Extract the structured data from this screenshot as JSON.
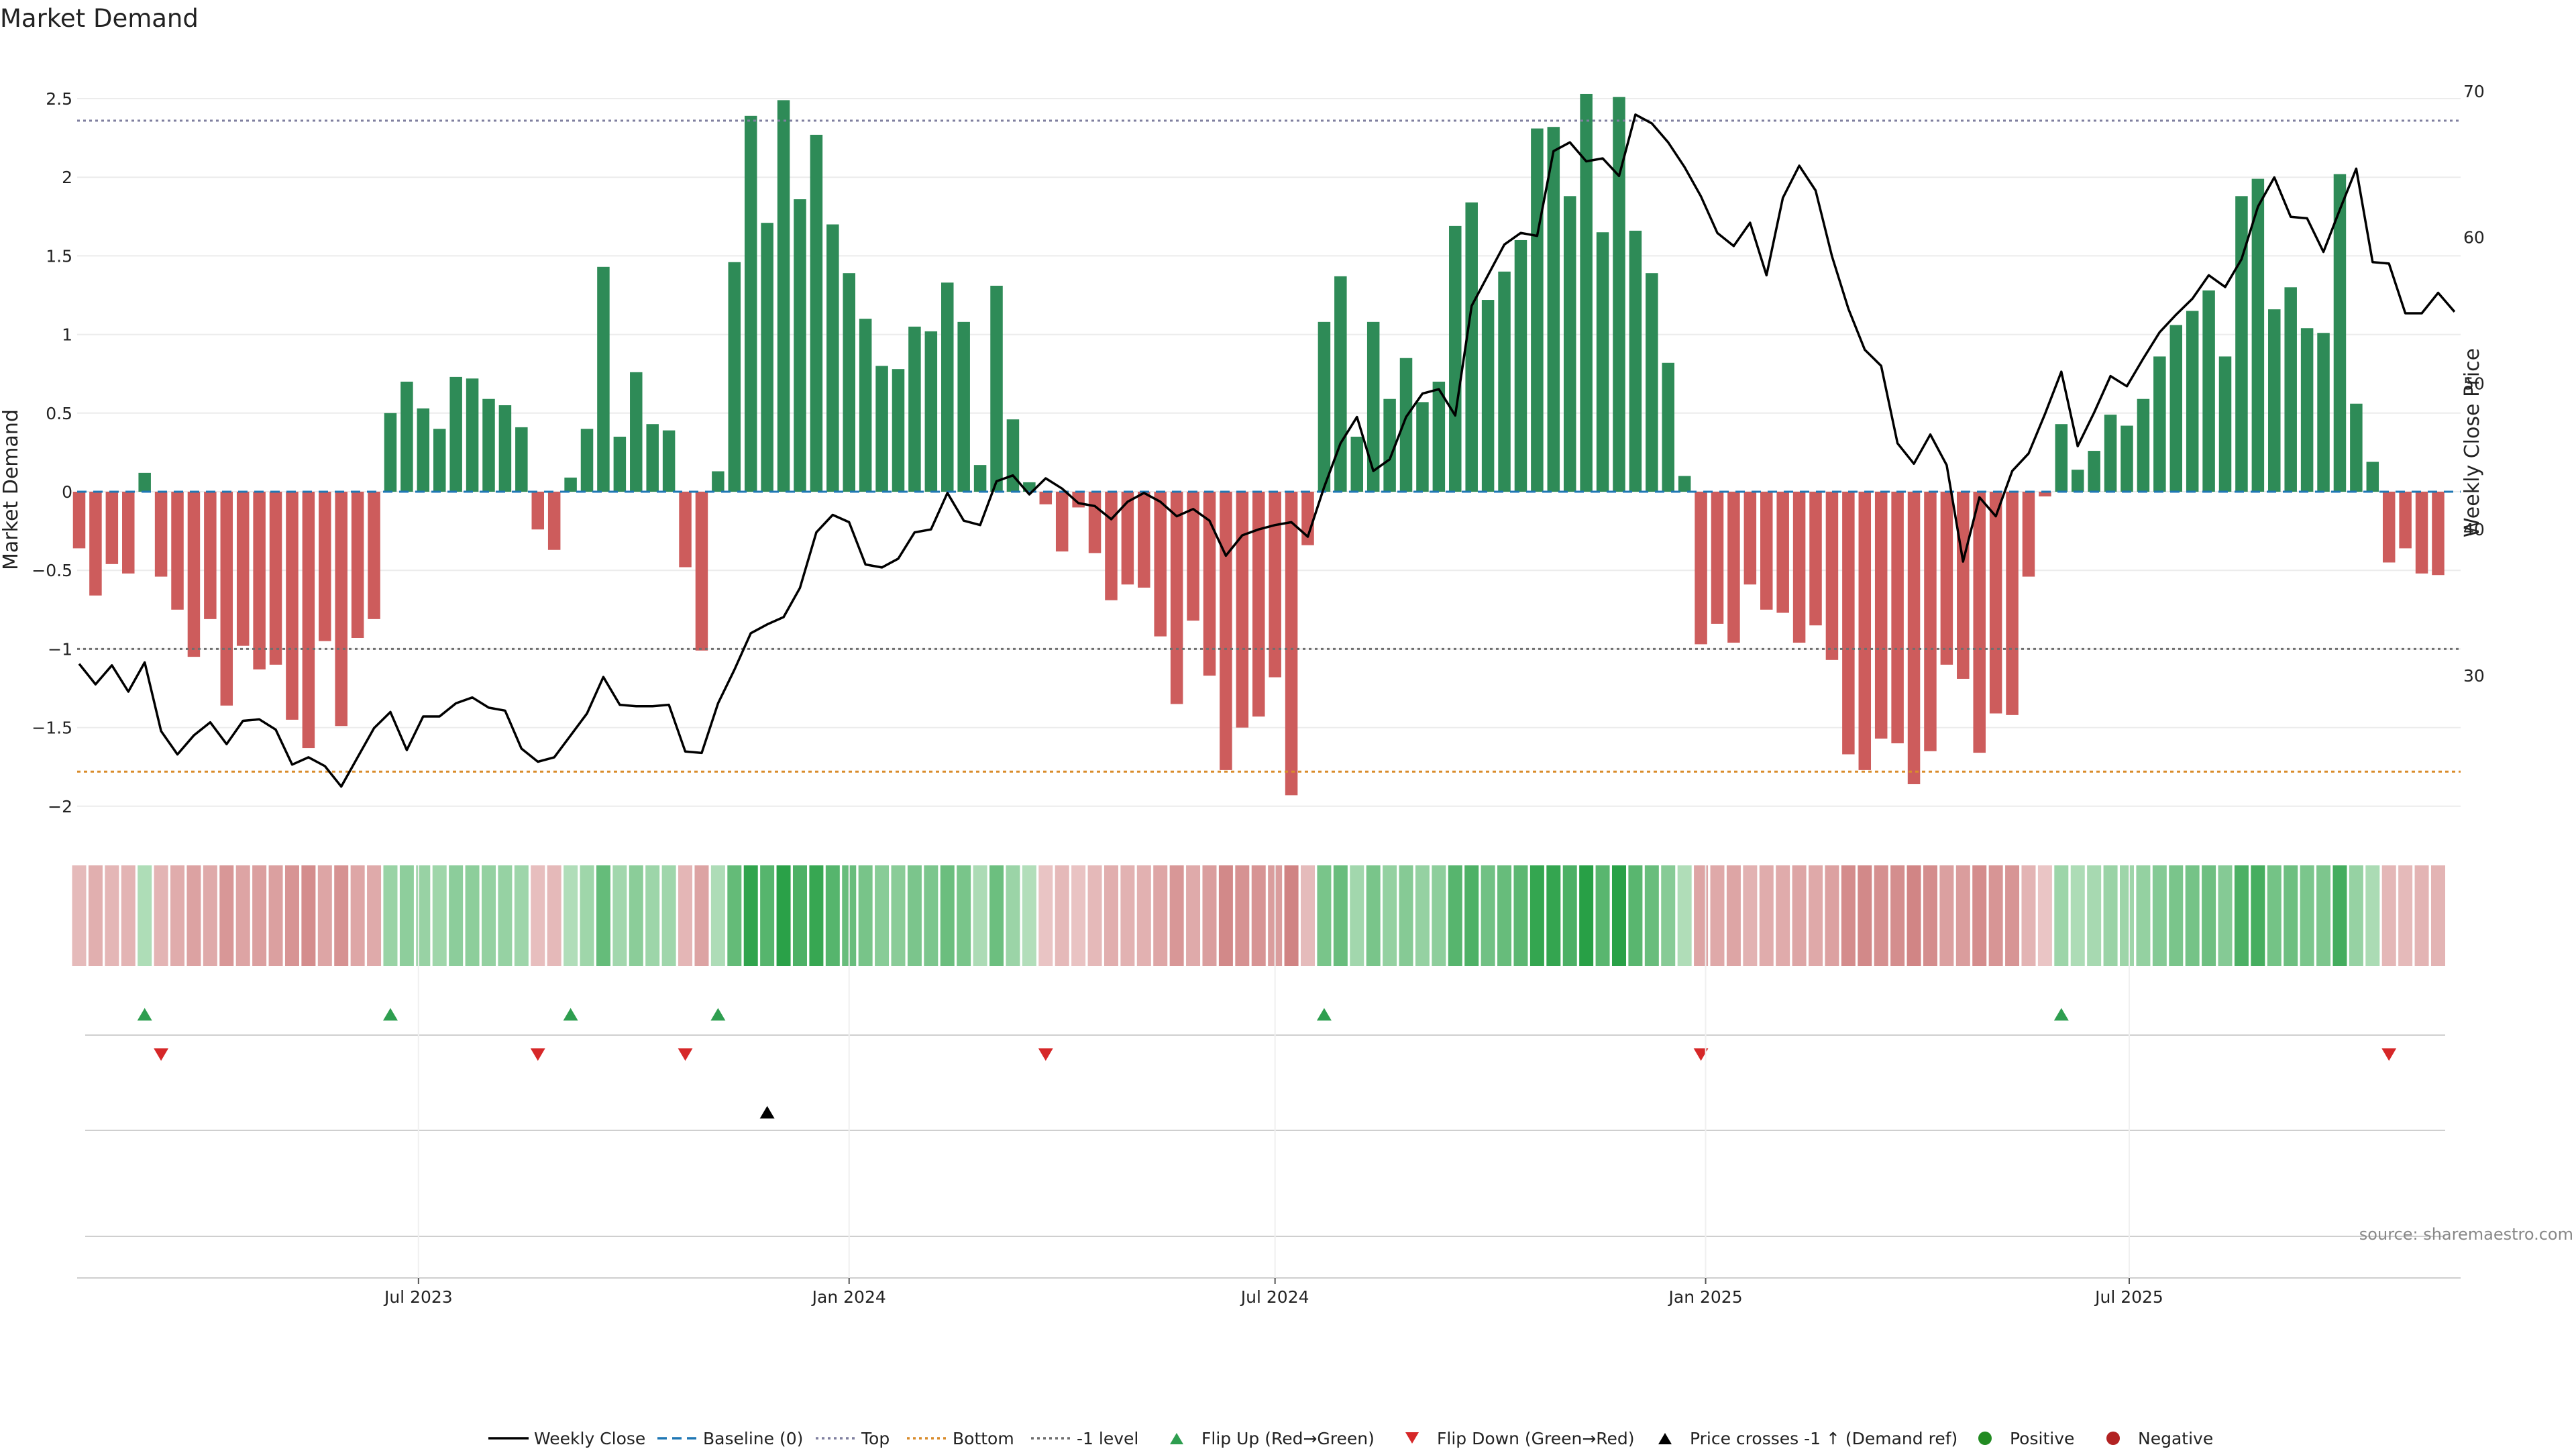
{
  "chart_data": {
    "type": "bar",
    "title": "Market Demand",
    "ylabel": "Market Demand",
    "ylabel_right": "Weekly Close Price",
    "ylim": [
      -2.2,
      2.8
    ],
    "ylim_right": [
      19.3,
      72.8
    ],
    "yticks": [
      "2.5",
      "2",
      "1.5",
      "1",
      "0.5",
      "0",
      "−0.5",
      "−1",
      "−1.5",
      "−2"
    ],
    "yticks_right": [
      "70",
      "60",
      "50",
      "40",
      "30"
    ],
    "x_start": "2023-02-06",
    "x_step_days": 7,
    "x_ticks": [
      {
        "label": "Jul 2023",
        "date": "2023-07-01"
      },
      {
        "label": "Jan 2024",
        "date": "2024-01-01"
      },
      {
        "label": "Jul 2024",
        "date": "2024-07-01"
      },
      {
        "label": "Jan 2025",
        "date": "2025-01-01"
      },
      {
        "label": "Jul 2025",
        "date": "2025-07-01"
      }
    ],
    "grid": true,
    "legend_position": "bottom",
    "reference_lines": {
      "baseline": 0,
      "top": 2.36,
      "bottom": -1.78,
      "minus_one": -1.0
    },
    "demand": [
      -0.36,
      -0.66,
      -0.46,
      -0.52,
      0.12,
      -0.54,
      -0.75,
      -1.05,
      -0.81,
      -1.36,
      -0.98,
      -1.13,
      -1.1,
      -1.45,
      -1.63,
      -0.95,
      -1.49,
      -0.93,
      -0.81,
      0.5,
      0.7,
      0.53,
      0.4,
      0.73,
      0.72,
      0.59,
      0.55,
      0.41,
      -0.24,
      -0.37,
      0.09,
      0.4,
      1.43,
      0.35,
      0.76,
      0.43,
      0.39,
      -0.48,
      -1.01,
      0.13,
      1.46,
      2.39,
      1.71,
      2.49,
      1.86,
      2.27,
      1.7,
      1.39,
      1.1,
      0.8,
      0.78,
      1.05,
      1.02,
      1.33,
      1.08,
      0.17,
      1.31,
      0.46,
      0.06,
      -0.08,
      -0.38,
      -0.1,
      -0.39,
      -0.69,
      -0.59,
      -0.61,
      -0.92,
      -1.35,
      -0.82,
      -1.17,
      -1.77,
      -1.5,
      -1.43,
      -1.18,
      -1.93,
      -0.34,
      1.08,
      1.37,
      0.35,
      1.08,
      0.59,
      0.85,
      0.57,
      0.7,
      1.69,
      1.84,
      1.22,
      1.4,
      1.6,
      2.31,
      2.32,
      1.88,
      2.53,
      1.65,
      2.51,
      1.66,
      1.39,
      0.82,
      0.1,
      -0.97,
      -0.84,
      -0.96,
      -0.59,
      -0.75,
      -0.77,
      -0.96,
      -0.85,
      -1.07,
      -1.67,
      -1.77,
      -1.57,
      -1.6,
      -1.86,
      -1.65,
      -1.1,
      -1.19,
      -1.66,
      -1.41,
      -1.42,
      -0.54,
      -0.03,
      0.43,
      0.14,
      0.26,
      0.49,
      0.42,
      0.59,
      0.86,
      1.06,
      1.15,
      1.28,
      0.86,
      1.88,
      1.99,
      1.16,
      1.3,
      1.04,
      1.01,
      2.02,
      0.56,
      0.19,
      -0.45,
      -0.36,
      -0.52,
      -0.53
    ],
    "close": [
      30.8,
      29.4,
      30.7,
      28.9,
      30.9,
      26.2,
      24.6,
      25.9,
      26.8,
      25.3,
      26.9,
      27.0,
      26.3,
      23.9,
      24.4,
      23.8,
      22.4,
      24.4,
      26.4,
      27.5,
      24.9,
      27.2,
      27.2,
      28.1,
      28.5,
      27.8,
      27.6,
      25.0,
      24.1,
      24.4,
      25.9,
      27.4,
      29.9,
      28.0,
      27.9,
      27.9,
      28.0,
      24.8,
      24.7,
      28.1,
      30.4,
      32.9,
      33.5,
      34.0,
      36.0,
      39.8,
      41.0,
      40.5,
      37.6,
      37.4,
      38.0,
      39.8,
      40.0,
      42.5,
      40.6,
      40.3,
      43.3,
      43.7,
      42.4,
      43.5,
      42.8,
      41.8,
      41.6,
      40.7,
      41.9,
      42.5,
      41.9,
      40.9,
      41.4,
      40.6,
      38.2,
      39.6,
      40.0,
      40.3,
      40.5,
      39.5,
      42.9,
      45.9,
      47.7,
      44.0,
      44.8,
      47.7,
      49.3,
      49.6,
      47.8,
      55.3,
      57.4,
      59.5,
      60.3,
      60.1,
      65.9,
      66.5,
      65.2,
      65.4,
      64.2,
      68.4,
      67.8,
      66.5,
      64.8,
      62.8,
      60.3,
      59.4,
      61.0,
      57.4,
      62.7,
      64.9,
      63.2,
      58.7,
      55.1,
      52.3,
      51.2,
      45.9,
      44.5,
      46.5,
      44.4,
      37.8,
      42.2,
      40.9,
      44.0,
      45.2,
      47.9,
      50.8,
      45.7,
      48.0,
      50.5,
      49.8,
      51.7,
      53.5,
      54.7,
      55.8,
      57.4,
      56.6,
      58.5,
      62.1,
      64.1,
      61.4,
      61.3,
      59.0,
      61.9,
      64.7,
      58.3,
      58.2,
      54.8,
      54.8,
      56.2,
      54.9
    ],
    "heat_strip": "Demand heat strip (green = positive, red = negative)",
    "events": {
      "flip_up": [
        4,
        19,
        30,
        39,
        76,
        121
      ],
      "flip_down": [
        5,
        28,
        37,
        59,
        99,
        141
      ],
      "price_cross": [
        42
      ]
    },
    "colors": {
      "positive": "#2e8b57",
      "negative": "#cd5c5c",
      "positive_dot": "#228b22",
      "negative_dot": "#b22222",
      "flip_up": "#2e9e4f",
      "flip_down": "#d62728",
      "close_line": "#000000",
      "baseline": "#1f77b4",
      "top": "#7f7f9f",
      "bottom": "#d98c2b",
      "minus_one": "#6f6f6f"
    },
    "legend": [
      {
        "label": "Weekly Close",
        "kind": "line-solid"
      },
      {
        "label": "Baseline (0)",
        "kind": "line-dash-blue"
      },
      {
        "label": "Top",
        "kind": "line-dot-gray"
      },
      {
        "label": "Bottom",
        "kind": "line-dot-orange"
      },
      {
        "label": "-1 level",
        "kind": "line-dot-dark"
      },
      {
        "label": "Flip Up (Red→Green)",
        "kind": "tri-up-green"
      },
      {
        "label": "Flip Down (Green→Red)",
        "kind": "tri-down-red"
      },
      {
        "label": "Price crosses -1 ↑ (Demand ref)",
        "kind": "tri-up-black"
      },
      {
        "label": "Positive",
        "kind": "dot-green"
      },
      {
        "label": "Negative",
        "kind": "dot-red"
      }
    ],
    "source": "source: sharemaestro.com"
  }
}
